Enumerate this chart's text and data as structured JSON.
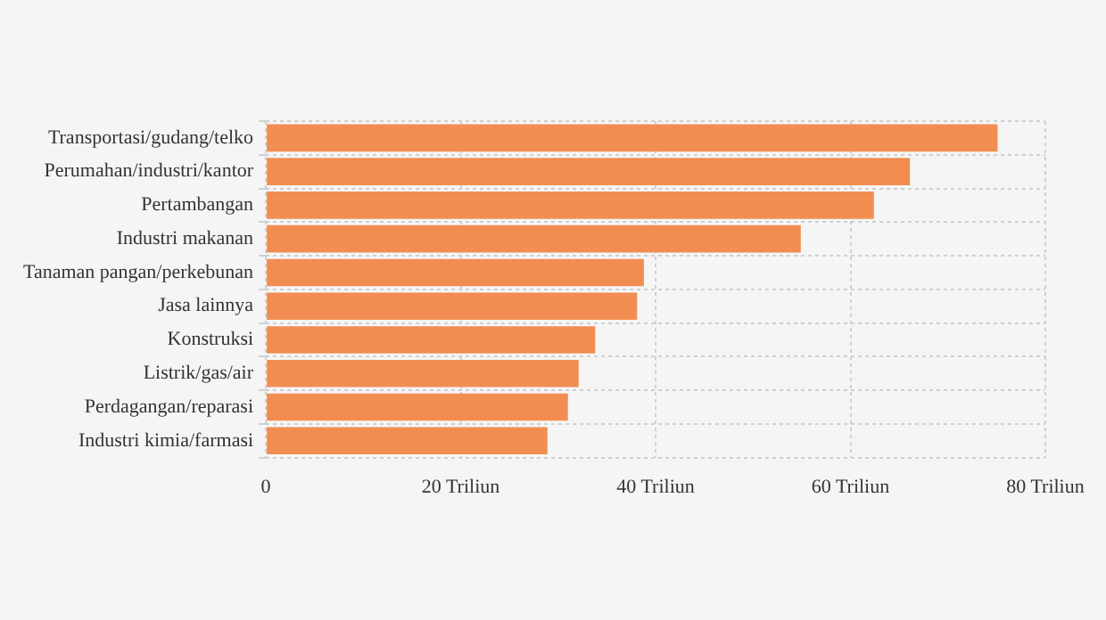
{
  "chart_data": {
    "type": "bar",
    "orientation": "horizontal",
    "categories": [
      "Transportasi/gudang/telko",
      "Perumahan/industri/kantor",
      "Pertambangan",
      "Industri makanan",
      "Tanaman pangan/perkebunan",
      "Jasa lainnya",
      "Konstruksi",
      "Listrik/gas/air",
      "Perdagangan/reparasi",
      "Industri kimia/farmasi"
    ],
    "values": [
      75.1,
      66.1,
      62.4,
      54.9,
      38.8,
      38.1,
      33.8,
      32.1,
      31.0,
      28.9
    ],
    "color": "#f28d52",
    "xlim": [
      0,
      80
    ],
    "xticks": [
      0,
      {
        "value": 20,
        "label": "20 Triliun"
      },
      {
        "value": 40,
        "label": "40 Triliun"
      },
      {
        "value": 60,
        "label": "60 Triliun"
      },
      {
        "value": 80,
        "label": "80 Triliun"
      }
    ],
    "grid": true
  }
}
